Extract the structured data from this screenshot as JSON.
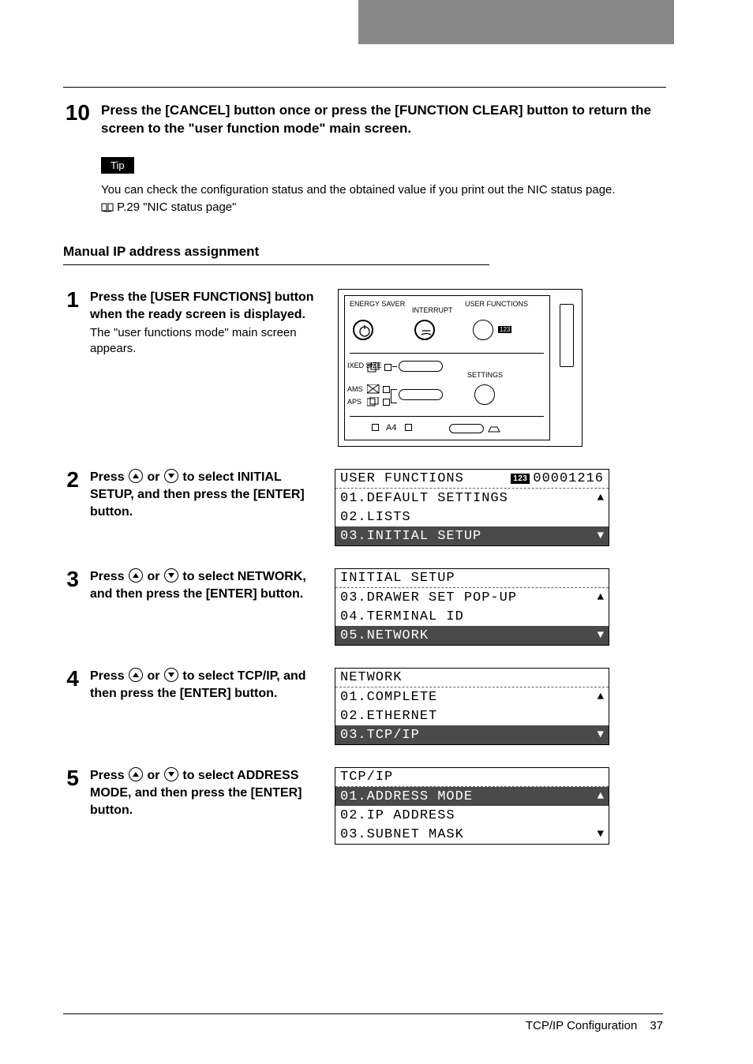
{
  "step10": {
    "number": "10",
    "text": "Press the [CANCEL] button once or press the [FUNCTION CLEAR] button to return the screen to the \"user function mode\" main screen."
  },
  "tip": {
    "badge": "Tip",
    "text": "You can check the configuration status and the obtained value if you print out the NIC status page.",
    "ref": "P.29 \"NIC status page\""
  },
  "section_title": "Manual IP address assignment",
  "panel": {
    "energy_saver": "ENERGY\nSAVER",
    "interrupt": "INTERRUPT",
    "user_functions": "USER\nFUNCTIONS",
    "ixed_size": "IXED\nSIZE",
    "ams": "AMS",
    "aps": "APS",
    "settings": "SETTINGS",
    "a4": "A4",
    "badge": "123"
  },
  "steps": [
    {
      "num": "1",
      "bold": "Press the [USER FUNCTIONS] button when the ready screen is displayed.",
      "plain": "The \"user functions mode\" main screen appears."
    },
    {
      "num": "2",
      "bold_pre": "Press ",
      "bold_mid": " or ",
      "bold_post": " to select INITIAL SETUP, and then press the [ENTER] button.",
      "lcd": {
        "header": "USER FUNCTIONS",
        "badge": "123",
        "counter": "00001216",
        "rows": [
          {
            "text": "01.DEFAULT SETTINGS",
            "arrow": "▲",
            "selected": false
          },
          {
            "text": "02.LISTS",
            "arrow": "",
            "selected": false
          },
          {
            "text": "03.INITIAL SETUP",
            "arrow": "▼",
            "selected": true
          }
        ]
      }
    },
    {
      "num": "3",
      "bold_pre": "Press ",
      "bold_mid": " or ",
      "bold_post": " to select NETWORK, and then press the [ENTER] button.",
      "lcd": {
        "header": "INITIAL SETUP",
        "rows": [
          {
            "text": "03.DRAWER SET POP-UP",
            "arrow": "▲",
            "selected": false
          },
          {
            "text": "04.TERMINAL ID",
            "arrow": "",
            "selected": false
          },
          {
            "text": "05.NETWORK",
            "arrow": "▼",
            "selected": true
          }
        ]
      }
    },
    {
      "num": "4",
      "bold_pre": "Press ",
      "bold_mid": " or ",
      "bold_post": " to select TCP/IP, and then press the [ENTER] button.",
      "lcd": {
        "header": "NETWORK",
        "rows": [
          {
            "text": "01.COMPLETE",
            "arrow": "▲",
            "selected": false
          },
          {
            "text": "02.ETHERNET",
            "arrow": "",
            "selected": false
          },
          {
            "text": "03.TCP/IP",
            "arrow": "▼",
            "selected": true
          }
        ]
      }
    },
    {
      "num": "5",
      "bold_pre": "Press ",
      "bold_mid": " or ",
      "bold_post": " to select ADDRESS MODE, and then press the [ENTER] button.",
      "lcd": {
        "header": "TCP/IP",
        "rows": [
          {
            "text": "01.ADDRESS MODE",
            "arrow": "▲",
            "selected": true
          },
          {
            "text": "02.IP ADDRESS",
            "arrow": "",
            "selected": false
          },
          {
            "text": "03.SUBNET MASK",
            "arrow": "▼",
            "selected": false
          }
        ]
      }
    }
  ],
  "footer": {
    "section": "TCP/IP Configuration",
    "page": "37"
  }
}
